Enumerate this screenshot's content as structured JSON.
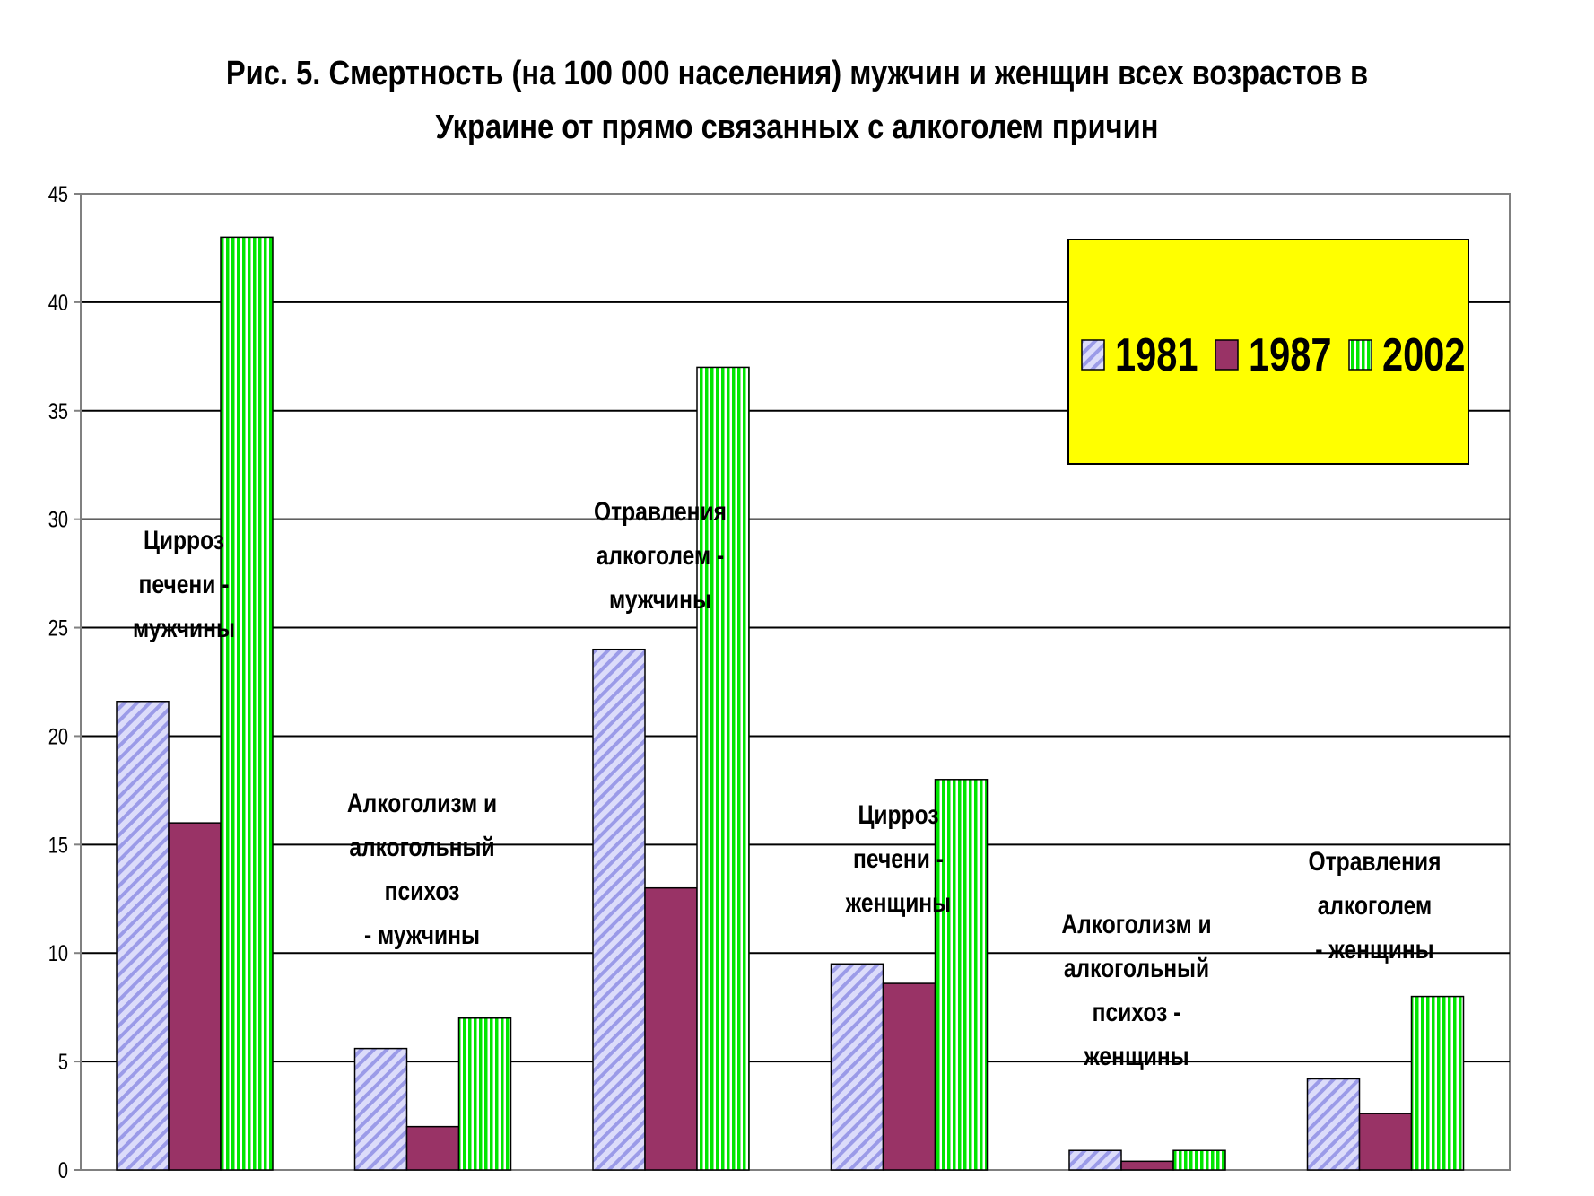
{
  "chart_data": {
    "type": "bar",
    "title": [
      "Рис. 5. Смертность (на 100 000 населения) мужчин и женщин всех возрастов в",
      "Украине от прямо связанных с алкоголем причин"
    ],
    "xlabel": "",
    "ylabel": "",
    "ylim": [
      0,
      45
    ],
    "yticks": [
      0,
      5,
      10,
      15,
      20,
      25,
      30,
      35,
      40,
      45
    ],
    "grid": true,
    "legend_placement": "top-right",
    "categories": [
      [
        "Цирроз",
        "печени -",
        "мужчины"
      ],
      [
        "Алкоголизм и",
        "алкогольный",
        "психоз",
        "- мужчины"
      ],
      [
        "Отравления",
        "алкоголем -",
        "мужчины"
      ],
      [
        "Цирроз",
        "печени -",
        "женщины"
      ],
      [
        "Алкоголизм и",
        "алкогольный",
        "психоз -",
        "женщины"
      ],
      [
        "Отравления",
        "алкоголем",
        "- женщины"
      ]
    ],
    "series": [
      {
        "name": "1981",
        "values": [
          21.6,
          5.6,
          24.0,
          9.5,
          0.9,
          4.2
        ],
        "color": "#c8c8f5",
        "pattern": "diagonal-stripes"
      },
      {
        "name": "1987",
        "values": [
          16.0,
          2.0,
          13.0,
          8.6,
          0.4,
          2.6
        ],
        "color": "#993366",
        "pattern": "solid"
      },
      {
        "name": "2002",
        "values": [
          43.0,
          7.0,
          37.0,
          18.0,
          0.9,
          8.0
        ],
        "color": "#00e600",
        "pattern": "vertical-stripes"
      }
    ],
    "legend_background": "#ffff00"
  }
}
